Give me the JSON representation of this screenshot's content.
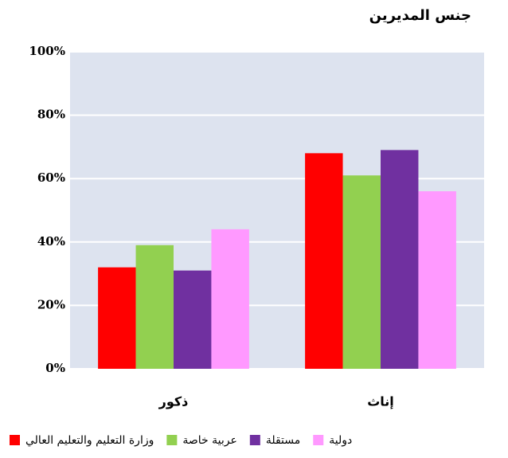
{
  "chart_data": {
    "type": "bar",
    "title": "جنس المديرين",
    "categories": [
      "ذكور",
      "إناث"
    ],
    "series": [
      {
        "name": "وزارة التعليم والتعليم العالي",
        "color": "#ff0000",
        "values": [
          32,
          68
        ]
      },
      {
        "name": "عربية خاصة",
        "color": "#92d050",
        "values": [
          39,
          61
        ]
      },
      {
        "name": "مستقلة",
        "color": "#7030a0",
        "values": [
          31,
          69
        ]
      },
      {
        "name": "دولية",
        "color": "#ff99ff",
        "values": [
          44,
          56
        ]
      }
    ],
    "ylim": [
      0,
      100
    ],
    "yticks": [
      {
        "value": 0,
        "label": "0%"
      },
      {
        "value": 20,
        "label": "20%"
      },
      {
        "value": 40,
        "label": "40%"
      },
      {
        "value": 60,
        "label": "60%"
      },
      {
        "value": 80,
        "label": "80%"
      },
      {
        "value": 100,
        "label": "100%"
      }
    ],
    "grid": true,
    "legend": "bottom"
  }
}
